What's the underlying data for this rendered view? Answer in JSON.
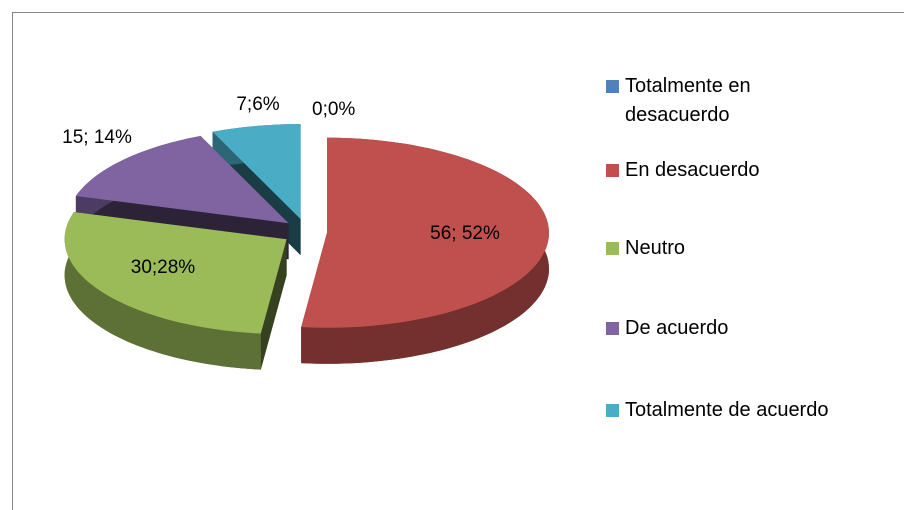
{
  "chart_data": {
    "type": "pie",
    "categories": [
      "Totalmente en desacuerdo",
      "En desacuerdo",
      "Neutro",
      "De acuerdo",
      "Totalmente de acuerdo"
    ],
    "values": [
      0,
      56,
      30,
      15,
      7
    ],
    "value_labels": [
      "0;0%",
      "56; 52%",
      "30;28%",
      "15; 14%",
      "7;6%"
    ],
    "colors": [
      "#4f81bd",
      "#c0504d",
      "#9bbb59",
      "#8064a2",
      "#4bacc6"
    ],
    "legend": "right"
  }
}
